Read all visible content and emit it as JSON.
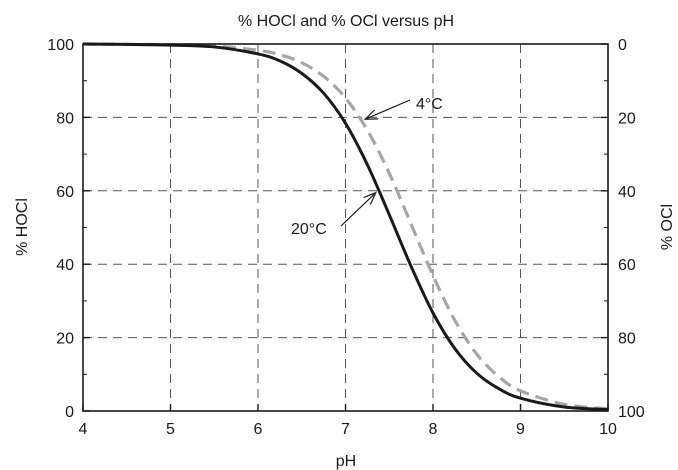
{
  "chart_data": {
    "type": "line",
    "title": "% HOCl and % OCl versus pH",
    "xlabel": "pH",
    "ylabel": "% HOCl",
    "y2label": "% OCl",
    "xlim": [
      4,
      10
    ],
    "ylim": [
      0,
      100
    ],
    "y2lim": [
      100,
      0
    ],
    "xticks": [
      4,
      5,
      6,
      7,
      8,
      9,
      10
    ],
    "yticks": [
      0,
      20,
      40,
      60,
      80,
      100
    ],
    "y2ticks": [
      100,
      80,
      60,
      40,
      20,
      0
    ],
    "grid": true,
    "series": [
      {
        "name": "20°C",
        "style": "solid",
        "color": "#1a1a1a",
        "x": [
          4.0,
          4.5,
          5.0,
          5.5,
          6.0,
          6.25,
          6.5,
          6.75,
          7.0,
          7.25,
          7.5,
          7.75,
          8.0,
          8.25,
          8.5,
          8.75,
          9.0,
          9.5,
          10.0
        ],
        "y": [
          100.0,
          99.9,
          99.7,
          99.2,
          97.3,
          95.4,
          92.0,
          86.6,
          78.4,
          67.1,
          53.5,
          39.4,
          26.7,
          17.0,
          10.3,
          6.1,
          3.5,
          1.1,
          0.4
        ]
      },
      {
        "name": "4°C",
        "style": "dashed",
        "color": "#a6a6a6",
        "x": [
          4.0,
          4.5,
          5.0,
          5.5,
          6.0,
          6.25,
          6.5,
          6.75,
          7.0,
          7.25,
          7.5,
          7.75,
          8.0,
          8.25,
          8.5,
          8.75,
          9.0,
          9.5,
          10.0
        ],
        "y": [
          100.0,
          99.9,
          99.8,
          99.5,
          98.3,
          97.1,
          94.9,
          91.2,
          85.3,
          76.5,
          64.8,
          50.9,
          36.9,
          24.7,
          15.5,
          9.4,
          5.5,
          1.8,
          0.6
        ]
      }
    ],
    "annotations": [
      {
        "text": "4°C",
        "series": "4°C",
        "at_x": 7.18
      },
      {
        "text": "20°C",
        "series": "20°C",
        "at_x": 7.38
      }
    ]
  }
}
